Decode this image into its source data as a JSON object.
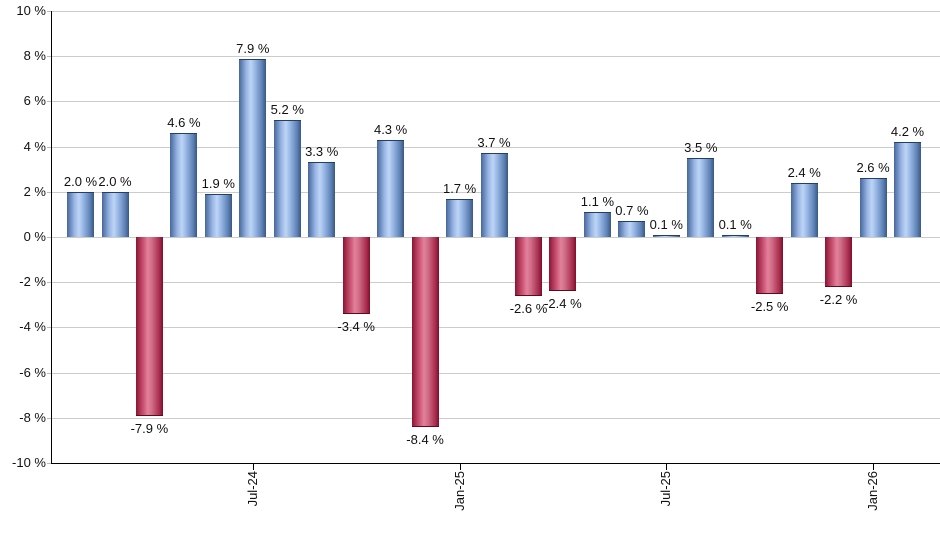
{
  "chart": {
    "background": "#ffffff",
    "axis_color": "#000000",
    "gridline_color": "#cccccc",
    "positive_bar_color": "#6f94cb",
    "positive_bar_highlight": "#bdd4f4",
    "positive_bar_edge": "#39587f",
    "negative_bar_color": "#c24e6e",
    "negative_bar_highlight": "#e3819b",
    "negative_bar_edge": "#7d0d2b"
  },
  "chart_data": {
    "type": "bar",
    "title": "",
    "xlabel": "",
    "ylabel": "",
    "unit": "%",
    "ylim": [
      -10,
      10
    ],
    "grid": true,
    "legend": false,
    "y_ticks": [
      {
        "value": 10,
        "label": "10 %"
      },
      {
        "value": 8,
        "label": "8 %"
      },
      {
        "value": 6,
        "label": "6 %"
      },
      {
        "value": 4,
        "label": "4 %"
      },
      {
        "value": 2,
        "label": "2 %"
      },
      {
        "value": 0,
        "label": "0 %"
      },
      {
        "value": -2,
        "label": "-2 %"
      },
      {
        "value": -4,
        "label": "-4 %"
      },
      {
        "value": -6,
        "label": "-6 %"
      },
      {
        "value": -8,
        "label": "-8 %"
      },
      {
        "value": -10,
        "label": "-10 %"
      }
    ],
    "bars": [
      {
        "value": 2.0,
        "label": "2.0 %"
      },
      {
        "value": 2.0,
        "label": "2.0 %"
      },
      {
        "value": -7.9,
        "label": "-7.9 %"
      },
      {
        "value": 4.6,
        "label": "4.6 %"
      },
      {
        "value": 1.9,
        "label": "1.9 %"
      },
      {
        "value": 7.9,
        "label": "7.9 %"
      },
      {
        "value": 5.2,
        "label": "5.2 %"
      },
      {
        "value": 3.3,
        "label": "3.3 %"
      },
      {
        "value": -3.4,
        "label": "-3.4 %"
      },
      {
        "value": 4.3,
        "label": "4.3 %"
      },
      {
        "value": -8.4,
        "label": "-8.4 %"
      },
      {
        "value": 1.7,
        "label": "1.7 %"
      },
      {
        "value": 3.7,
        "label": "3.7 %"
      },
      {
        "value": -2.6,
        "label": "-2.6 %"
      },
      {
        "value": -2.4,
        "label": "-2.4 %"
      },
      {
        "value": 1.1,
        "label": "1.1 %"
      },
      {
        "value": 0.7,
        "label": "0.7 %"
      },
      {
        "value": 0.1,
        "label": "0.1 %"
      },
      {
        "value": 3.5,
        "label": "3.5 %"
      },
      {
        "value": 0.1,
        "label": "0.1 %"
      },
      {
        "value": -2.5,
        "label": "-2.5 %"
      },
      {
        "value": 2.4,
        "label": "2.4 %"
      },
      {
        "value": -2.2,
        "label": "-2.2 %"
      },
      {
        "value": 2.6,
        "label": "2.6 %"
      },
      {
        "value": 4.2,
        "label": "4.2 %"
      }
    ],
    "x_ticks": [
      {
        "bar_index": 5,
        "label": "Jul-24"
      },
      {
        "bar_index": 11,
        "label": "Jan-25"
      },
      {
        "bar_index": 17,
        "label": "Jul-25"
      },
      {
        "bar_index": 23,
        "label": "Jan-26"
      }
    ]
  }
}
